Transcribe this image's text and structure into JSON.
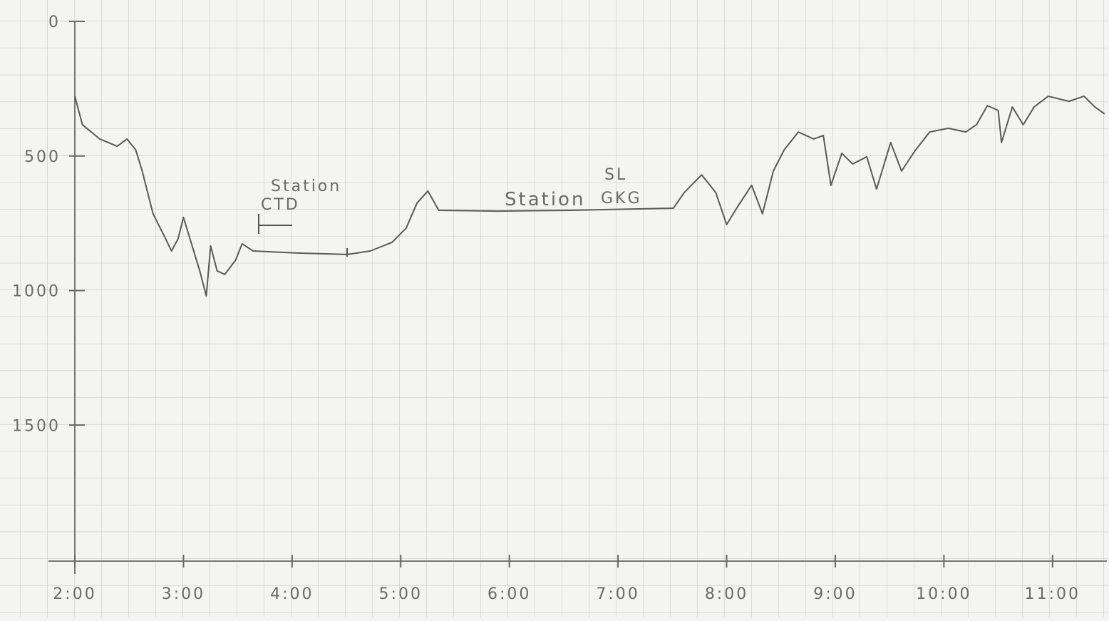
{
  "chart_data": {
    "type": "line",
    "x": [
      2.0,
      2.07,
      2.23,
      2.39,
      2.48,
      2.56,
      2.62,
      2.72,
      2.82,
      2.89,
      2.95,
      3.0,
      3.07,
      3.15,
      3.21,
      3.25,
      3.31,
      3.38,
      3.48,
      3.54,
      3.64,
      4.07,
      4.51,
      4.72,
      4.92,
      5.05,
      5.15,
      5.25,
      5.35,
      5.9,
      6.56,
      7.51,
      7.61,
      7.77,
      7.9,
      8.0,
      8.1,
      8.23,
      8.33,
      8.43,
      8.53,
      8.66,
      8.8,
      8.89,
      8.96,
      9.06,
      9.16,
      9.29,
      9.38,
      9.51,
      9.61,
      9.74,
      9.87,
      10.04,
      10.2,
      10.3,
      10.4,
      10.5,
      10.53,
      10.63,
      10.73,
      10.83,
      10.96,
      11.15,
      11.29,
      11.39,
      11.48
    ],
    "series": [
      {
        "color": "#5a5a5a",
        "values": [
          278,
          384,
          437,
          464,
          437,
          477,
          556,
          715,
          795,
          853,
          808,
          728,
          821,
          927,
          1020,
          834,
          927,
          940,
          887,
          826,
          853,
          861,
          866,
          853,
          821,
          768,
          675,
          630,
          702,
          705,
          702,
          694,
          636,
          570,
          636,
          755,
          689,
          609,
          715,
          556,
          477,
          411,
          437,
          424,
          609,
          490,
          530,
          503,
          623,
          450,
          556,
          477,
          411,
          397,
          411,
          384,
          313,
          331,
          450,
          318,
          384,
          318,
          278,
          297,
          278,
          318,
          344
        ]
      }
    ],
    "xlim": [
      2,
      11.5
    ],
    "xticks": [
      {
        "value": 2,
        "label": "2:00"
      },
      {
        "value": 3,
        "label": "3:00"
      },
      {
        "value": 4,
        "label": "4:00"
      },
      {
        "value": 5,
        "label": "5:00"
      },
      {
        "value": 6,
        "label": "6:00"
      },
      {
        "value": 7,
        "label": "7:00"
      },
      {
        "value": 8,
        "label": "8:00"
      },
      {
        "value": 9,
        "label": "9:00"
      },
      {
        "value": 10,
        "label": "10:00"
      },
      {
        "value": 11,
        "label": "11:00"
      }
    ],
    "ylim": [
      0,
      2000
    ],
    "yticks": [
      0,
      500,
      1000,
      1500
    ],
    "y_inverted": true,
    "annotations": [
      "Station",
      "CTD",
      "Station",
      "SL",
      "GKG"
    ]
  }
}
